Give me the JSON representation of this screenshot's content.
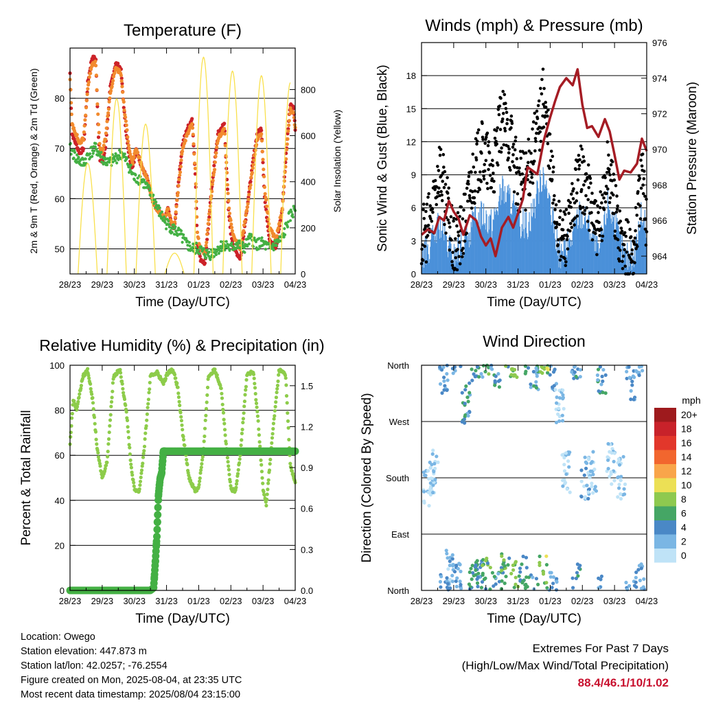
{
  "chart_data": [
    {
      "type": "line",
      "title": "Temperature (F)",
      "xlabel": "Time (Day/UTC)",
      "ylabel": "2m & 9m T (Red, Orange) & 2m Td (Green)",
      "ylabel_right": "Solar Insolation (Yellow)",
      "x_ticks": [
        "28/23",
        "29/23",
        "30/23",
        "31/23",
        "01/23",
        "02/23",
        "03/23",
        "04/23"
      ],
      "xlim": [
        0,
        7
      ],
      "ylim": [
        45,
        90
      ],
      "y_ticks": [
        50,
        60,
        70,
        80
      ],
      "ylim_right": [
        0,
        980
      ],
      "y_ticks_right": [
        0,
        200,
        400,
        600,
        800
      ],
      "grid": "horizontal",
      "series": [
        {
          "name": "2m T",
          "color": "#cc2229",
          "axis": "left",
          "x": [
            0,
            0.06,
            0.18,
            0.3,
            0.42,
            0.55,
            0.68,
            0.8,
            0.88,
            0.93,
            1.0,
            1.1,
            1.25,
            1.42,
            1.58,
            1.7,
            1.82,
            1.9,
            1.95,
            2.05,
            2.2,
            2.4,
            2.6,
            2.8,
            2.95,
            3.05,
            3.15,
            3.25,
            3.35,
            3.5,
            3.65,
            3.8,
            3.9,
            3.96,
            4.05,
            4.2,
            4.4,
            4.6,
            4.8,
            4.92,
            5.0,
            5.1,
            5.3,
            5.5,
            5.7,
            5.82,
            5.95,
            6.05,
            6.2,
            6.4,
            6.6,
            6.75,
            6.85,
            6.95,
            7.0
          ],
          "y": [
            85,
            73,
            71,
            69,
            70,
            83,
            88,
            88,
            73,
            68,
            67,
            70,
            82,
            87,
            86,
            76,
            69,
            67,
            66,
            70,
            67,
            64,
            59,
            57,
            56,
            58,
            55,
            54,
            62,
            71,
            74,
            76,
            64,
            51,
            48,
            47,
            62,
            73,
            75,
            58,
            53,
            50,
            48,
            58,
            68,
            73,
            74,
            60,
            52,
            50,
            58,
            72,
            79,
            78,
            74
          ]
        },
        {
          "name": "9m T",
          "color": "#f28a2e",
          "axis": "left",
          "x": [
            0,
            0.06,
            0.18,
            0.3,
            0.42,
            0.55,
            0.68,
            0.8,
            0.88,
            0.93,
            1.0,
            1.1,
            1.25,
            1.42,
            1.58,
            1.7,
            1.82,
            1.9,
            1.95,
            2.05,
            2.2,
            2.4,
            2.6,
            2.8,
            2.95,
            3.05,
            3.15,
            3.25,
            3.35,
            3.5,
            3.65,
            3.8,
            3.9,
            3.96,
            4.05,
            4.2,
            4.4,
            4.6,
            4.8,
            4.92,
            5.0,
            5.1,
            5.3,
            5.5,
            5.7,
            5.82,
            5.95,
            6.05,
            6.2,
            6.4,
            6.6,
            6.75,
            6.85,
            6.95,
            7.0
          ],
          "y": [
            84,
            75,
            73,
            71,
            72,
            82,
            87,
            87,
            75,
            70,
            69,
            72,
            81,
            86,
            85,
            77,
            71,
            68,
            67,
            70,
            67,
            64,
            59,
            57,
            56,
            58,
            55,
            55,
            61,
            70,
            73,
            75,
            65,
            53,
            50,
            49,
            61,
            72,
            74,
            60,
            55,
            52,
            50,
            58,
            67,
            72,
            73,
            62,
            54,
            52,
            58,
            71,
            78,
            77,
            74
          ]
        },
        {
          "name": "2m Td",
          "color": "#44b044",
          "axis": "left",
          "x": [
            0,
            0.2,
            0.4,
            0.6,
            0.8,
            1.0,
            1.2,
            1.4,
            1.6,
            1.8,
            2.0,
            2.2,
            2.4,
            2.6,
            2.8,
            3.0,
            3.2,
            3.4,
            3.6,
            3.8,
            4.0,
            4.2,
            4.4,
            4.6,
            4.8,
            5.0,
            5.2,
            5.4,
            5.6,
            5.8,
            6.0,
            6.2,
            6.4,
            6.6,
            6.8,
            7.0
          ],
          "y": [
            70,
            68,
            67,
            69,
            70,
            68,
            67,
            68,
            69,
            67,
            64,
            64,
            62,
            60,
            57,
            55,
            54,
            53,
            51,
            50,
            50,
            49,
            49,
            50,
            51,
            50,
            51,
            50,
            52,
            51,
            51,
            50,
            51,
            52,
            56,
            58
          ]
        },
        {
          "name": "Solar Insolation",
          "color": "#f9e04b",
          "axis": "right",
          "x": [
            0.25,
            0.55,
            0.85,
            1.15,
            1.45,
            1.75,
            2.05,
            2.35,
            2.65,
            2.95,
            3.25,
            3.55,
            3.85,
            4.15,
            4.45,
            4.75,
            5.05,
            5.35,
            5.65,
            5.95,
            6.25,
            6.55,
            6.85
          ],
          "y": [
            0,
            480,
            0,
            0,
            760,
            0,
            0,
            650,
            0,
            0,
            90,
            0,
            0,
            940,
            0,
            0,
            880,
            0,
            0,
            860,
            0,
            0,
            830
          ]
        }
      ]
    },
    {
      "type": "scatter",
      "title": "Winds (mph) & Pressure (mb)",
      "xlabel": "Time (Day/UTC)",
      "ylabel": "Sonic Wind & Gust (Blue, Black)",
      "ylabel_right": "Station Pressure (Maroon)",
      "x_ticks": [
        "28/23",
        "29/23",
        "30/23",
        "31/23",
        "01/23",
        "02/23",
        "03/23",
        "04/23"
      ],
      "xlim": [
        0,
        7
      ],
      "ylim": [
        0,
        21
      ],
      "y_ticks": [
        0,
        3,
        6,
        9,
        12,
        15,
        18
      ],
      "ylim_right": [
        963,
        976
      ],
      "y_ticks_right": [
        964,
        966,
        968,
        970,
        972,
        974,
        976
      ],
      "grid": "horizontal",
      "series": [
        {
          "name": "Sonic Wind",
          "color": "#4a90d9",
          "axis": "left",
          "x": [
            0,
            0.3,
            0.55,
            0.8,
            1.0,
            1.3,
            1.6,
            1.9,
            2.2,
            2.5,
            2.8,
            3.0,
            3.3,
            3.55,
            3.8,
            4.0,
            4.3,
            4.6,
            4.9,
            5.2,
            5.5,
            5.8,
            6.0,
            6.3,
            6.6,
            6.85,
            7.0
          ],
          "y": [
            1,
            2,
            4,
            2,
            1,
            2,
            4,
            5,
            4,
            7,
            6,
            4,
            4,
            6,
            9,
            5,
            1,
            2,
            5,
            4,
            1,
            6,
            4,
            1,
            1,
            5,
            3
          ]
        },
        {
          "name": "Gust",
          "color": "#000000",
          "axis": "left",
          "x": [
            0,
            0.3,
            0.55,
            0.8,
            1.0,
            1.3,
            1.6,
            1.9,
            2.2,
            2.5,
            2.8,
            3.0,
            3.3,
            3.55,
            3.8,
            4.0,
            4.3,
            4.6,
            4.9,
            5.2,
            5.5,
            5.8,
            6.0,
            6.3,
            6.6,
            6.85,
            7.0
          ],
          "y": [
            3,
            5,
            10,
            6,
            2,
            4,
            9,
            11,
            9,
            14,
            12,
            8,
            9,
            12,
            16,
            10,
            3,
            4,
            9,
            7,
            3,
            10,
            6,
            2,
            2,
            9,
            5
          ]
        },
        {
          "name": "Station Pressure",
          "color": "#a51c24",
          "axis": "right",
          "x": [
            0,
            0.2,
            0.4,
            0.55,
            0.7,
            0.85,
            1.0,
            1.15,
            1.3,
            1.5,
            1.7,
            1.85,
            2.0,
            2.15,
            2.3,
            2.5,
            2.7,
            2.85,
            3.0,
            3.15,
            3.3,
            3.45,
            3.6,
            3.8,
            4.0,
            4.15,
            4.3,
            4.5,
            4.7,
            4.85,
            5.0,
            5.15,
            5.3,
            5.5,
            5.7,
            5.85,
            6.0,
            6.15,
            6.3,
            6.5,
            6.7,
            6.85,
            7.0
          ],
          "y": [
            965.2,
            965.5,
            965.3,
            966.2,
            966.0,
            967.1,
            966.5,
            966.1,
            965.2,
            966.3,
            966.0,
            965.1,
            964.6,
            965.0,
            964.0,
            965.6,
            966.2,
            965.6,
            966.4,
            967.2,
            969.0,
            968.8,
            968.6,
            970.5,
            971.8,
            972.7,
            973.5,
            974.0,
            973.6,
            974.5,
            972.5,
            971.2,
            971.3,
            970.7,
            971.7,
            971.0,
            969.7,
            968.3,
            968.8,
            968.7,
            969.2,
            970.6,
            969.9
          ]
        }
      ]
    },
    {
      "type": "line",
      "title": "Relative Humidity (%) & Precipitation (in)",
      "xlabel": "Time (Day/UTC)",
      "ylabel": "Percent & Total Rainfall",
      "x_ticks": [
        "28/23",
        "29/23",
        "30/23",
        "31/23",
        "01/23",
        "02/23",
        "03/23",
        "04/23"
      ],
      "xlim": [
        0,
        7
      ],
      "ylim": [
        0,
        100
      ],
      "y_ticks": [
        0,
        20,
        40,
        60,
        80,
        100
      ],
      "ylim_right": [
        0,
        1.65
      ],
      "y_ticks_right": [
        "0.0",
        "0.3",
        "0.6",
        "0.9",
        "1.2",
        "1.5"
      ],
      "grid": "horizontal",
      "series": [
        {
          "name": "Relative Humidity",
          "color": "#8dcc4a",
          "axis": "left",
          "x": [
            0,
            0.1,
            0.2,
            0.4,
            0.55,
            0.7,
            0.85,
            1.0,
            1.15,
            1.35,
            1.55,
            1.75,
            1.9,
            2.0,
            2.15,
            2.3,
            2.5,
            2.7,
            2.9,
            3.05,
            3.2,
            3.35,
            3.5,
            3.7,
            3.9,
            4.0,
            4.15,
            4.3,
            4.5,
            4.7,
            4.85,
            5.0,
            5.15,
            5.3,
            5.5,
            5.7,
            5.85,
            6.0,
            6.1,
            6.3,
            6.5,
            6.7,
            6.85,
            7.0
          ],
          "y": [
            65,
            85,
            80,
            95,
            98,
            85,
            62,
            50,
            57,
            95,
            98,
            80,
            55,
            45,
            44,
            62,
            95,
            97,
            92,
            97,
            98,
            90,
            70,
            50,
            44,
            46,
            62,
            95,
            98,
            90,
            65,
            45,
            44,
            62,
            96,
            97,
            75,
            45,
            38,
            70,
            98,
            96,
            55,
            48
          ]
        },
        {
          "name": "Total Rainfall",
          "color": "#44b044",
          "axis": "right",
          "x": [
            0,
            2.5,
            2.6,
            2.65,
            2.7,
            2.75,
            2.8,
            2.85,
            2.9,
            3.0,
            7.0
          ],
          "y": [
            0,
            0,
            0.02,
            0.2,
            0.4,
            0.7,
            0.82,
            0.86,
            1.02,
            1.02,
            1.02
          ]
        }
      ]
    },
    {
      "type": "scatter",
      "title": "Wind Direction",
      "xlabel": "Time (Day/UTC)",
      "ylabel": "Direction (Colored By Speed)",
      "x_ticks": [
        "28/23",
        "29/23",
        "30/23",
        "31/23",
        "01/23",
        "02/23",
        "03/23",
        "04/23"
      ],
      "xlim": [
        0,
        7
      ],
      "ylim": [
        0,
        360
      ],
      "y_ticks": [
        "North",
        "East",
        "South",
        "West",
        "North"
      ],
      "grid": "horizontal",
      "legend": {
        "title": "mph",
        "labels": [
          "20+",
          "18",
          "16",
          "14",
          "12",
          "10",
          "8",
          "6",
          "4",
          "2",
          "0"
        ],
        "colors": [
          "#9e1a1d",
          "#c8222a",
          "#e2372b",
          "#f2662e",
          "#f9a54a",
          "#ece055",
          "#8ec94f",
          "#45a665",
          "#4a88c6",
          "#7ab6e4",
          "#bfe3f7"
        ]
      },
      "series": [
        {
          "name": "Direction",
          "x": [
            0.2,
            0.4,
            0.7,
            0.9,
            1.1,
            1.4,
            1.6,
            1.8,
            2.0,
            2.3,
            2.6,
            2.9,
            3.2,
            3.5,
            3.8,
            4.1,
            4.3,
            4.5,
            4.8,
            5.1,
            5.3,
            5.6,
            5.9,
            6.2,
            6.5,
            6.8
          ],
          "y": [
            170,
            190,
            350,
            30,
            20,
            300,
            10,
            15,
            20,
            355,
            25,
            15,
            20,
            350,
            20,
            355,
            300,
            190,
            10,
            180,
            190,
            350,
            200,
            180,
            340,
            10
          ],
          "speed": [
            1,
            1,
            3,
            2,
            3,
            4,
            5,
            4,
            6,
            4,
            6,
            7,
            5,
            4,
            8,
            3,
            1,
            1,
            4,
            2,
            1,
            4,
            1,
            1,
            3,
            3
          ]
        }
      ]
    }
  ],
  "info": {
    "location": "Location: Owego",
    "elevation": "Station elevation: 447.873 m",
    "latlon": "Station lat/lon: 42.0257; -76.2554",
    "created": "Figure created on Mon, 2025-08-04, at 23:35 UTC",
    "recent": "Most recent data timestamp: 2025/08/04 23:15:00"
  },
  "extremes": {
    "title": "Extremes For Past 7 Days",
    "subtitle": "(High/Low/Max Wind/Total Precipitation)",
    "values": "88.4/46.1/10/1.02"
  }
}
